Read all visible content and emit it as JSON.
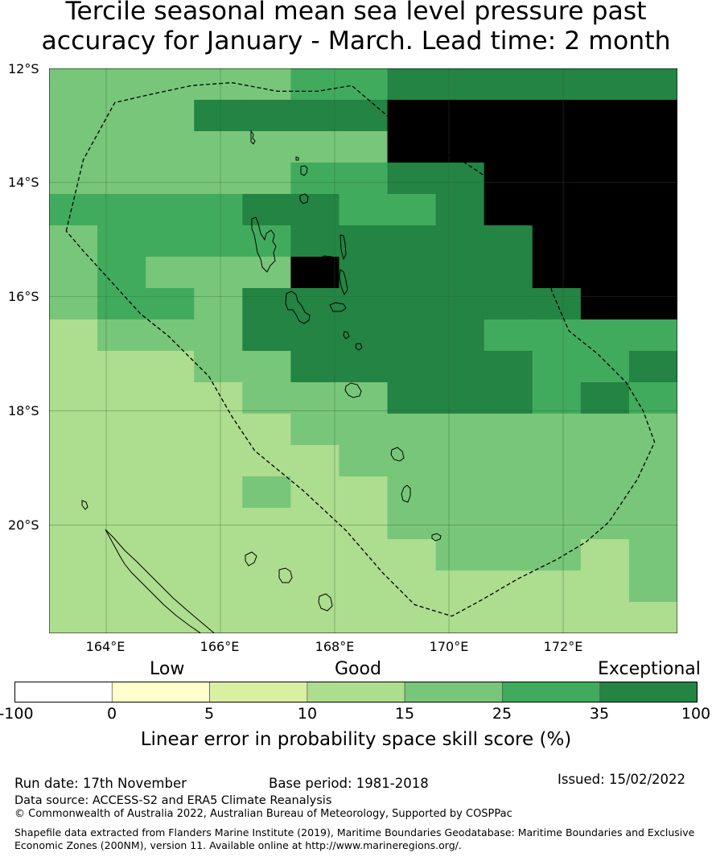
{
  "title_line1": "Tercile seasonal mean sea level pressure past",
  "title_line2": "accuracy for January - March. Lead time: 2 month",
  "map": {
    "lat_labels": [
      "12°S",
      "14°S",
      "16°S",
      "18°S",
      "20°S"
    ],
    "lon_labels": [
      "164°E",
      "166°E",
      "168°E",
      "170°E",
      "172°E"
    ],
    "lon_range": [
      163.0,
      174.0
    ],
    "lat_range": [
      -21.9,
      -12.0
    ],
    "grid_lons": [
      164,
      166,
      168,
      170,
      172
    ],
    "grid_lats": [
      -12,
      -14,
      -16,
      -18,
      -20
    ],
    "cell_rows": [
      "4444455666666",
      "4446666777777",
      "4444444777777",
      "4444455667777",
      "5555665567777",
      "4555566666777",
      "4544476666777",
      "4554666666677",
      "3444666665555",
      "3334466666556",
      "3333444666565",
      "3333344444444",
      "3333334444444",
      "3333433444444",
      "3333333444444",
      "3333333344434",
      "3333333333334",
      "3333333333333"
    ],
    "eez_boundary": [
      [
        163.3,
        -14.85
      ],
      [
        163.6,
        -13.6
      ],
      [
        164.15,
        -12.6
      ],
      [
        164.8,
        -12.45
      ],
      [
        165.5,
        -12.3
      ],
      [
        166.2,
        -12.25
      ],
      [
        167.0,
        -12.4
      ],
      [
        167.7,
        -12.4
      ],
      [
        168.3,
        -12.3
      ],
      [
        169.0,
        -12.9
      ],
      [
        169.7,
        -13.4
      ],
      [
        170.2,
        -13.6
      ],
      [
        170.8,
        -14.0
      ],
      [
        171.6,
        -14.95
      ],
      [
        171.8,
        -15.9
      ],
      [
        172.1,
        -16.6
      ],
      [
        172.6,
        -17.0
      ],
      [
        173.1,
        -17.5
      ],
      [
        173.4,
        -18.0
      ],
      [
        173.6,
        -18.55
      ],
      [
        173.3,
        -19.2
      ],
      [
        172.8,
        -19.95
      ],
      [
        172.4,
        -20.3
      ],
      [
        171.9,
        -20.6
      ],
      [
        171.2,
        -20.95
      ],
      [
        170.6,
        -21.3
      ],
      [
        170.05,
        -21.6
      ],
      [
        169.4,
        -21.4
      ],
      [
        168.85,
        -20.85
      ],
      [
        168.2,
        -20.1
      ],
      [
        167.45,
        -19.4
      ],
      [
        166.6,
        -18.7
      ],
      [
        166.2,
        -18.1
      ],
      [
        165.8,
        -17.4
      ],
      [
        165.1,
        -16.7
      ],
      [
        164.6,
        -16.3
      ],
      [
        164.1,
        -15.75
      ],
      [
        163.6,
        -15.2
      ],
      [
        163.3,
        -14.85
      ]
    ]
  },
  "colorbar": {
    "category_labels": [
      "Low",
      "Good",
      "Exceptional"
    ],
    "ticks": [
      "-100",
      "0",
      "5",
      "10",
      "15",
      "25",
      "35",
      "100"
    ],
    "colors": [
      "#ffffff",
      "#ffffcc",
      "#d9f0a3",
      "#addd8e",
      "#78c679",
      "#41ab5d",
      "#238443"
    ],
    "label": "Linear error in probability space skill score (%)"
  },
  "footer": {
    "run_date": "Run date: 17th November",
    "base_period": "Base period: 1981-2018",
    "issued": "Issued: 15/02/2022",
    "data_source": "Data source: ACCESS-S2 and ERA5 Climate Reanalysis",
    "copyright": "© Commonwealth of Australia 2022, Australian Bureau of Meteorology, Supported by COSPPac",
    "shapefile_line1": "Shapefile data extracted from Flanders Marine Institute (2019), Maritime Boundaries Geodatabase: Maritime Boundaries and Exclusive",
    "shapefile_line2": "Economic Zones (200NM), version 11. Available online at http://www.marineregions.org/."
  }
}
